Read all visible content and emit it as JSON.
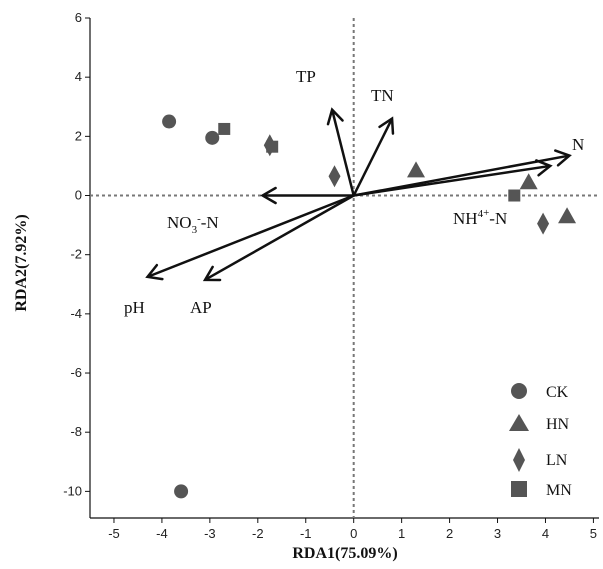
{
  "chart_data": {
    "type": "scatter",
    "xlabel": "RDA1(75.09%)",
    "ylabel": "RDA2(7.92%)",
    "xlim": [
      -5.5,
      5.2
    ],
    "ylim": [
      -10.9,
      6
    ],
    "x_ticks": [
      -5,
      -4,
      -3,
      -2,
      -1,
      0,
      1,
      2,
      3,
      4,
      5
    ],
    "y_ticks": [
      -10,
      -8,
      -6,
      -4,
      -2,
      0,
      2,
      4,
      6
    ],
    "zero_lines": "dotted",
    "grid": false,
    "legend_position": "bottom-right",
    "marker_color": "#555555",
    "line_color": "#111111",
    "series": [
      {
        "name": "CK",
        "marker": "circle",
        "points": [
          [
            -3.85,
            2.5
          ],
          [
            -2.95,
            1.95
          ],
          [
            -3.6,
            -10.0
          ]
        ]
      },
      {
        "name": "HN",
        "marker": "triangle",
        "points": [
          [
            1.3,
            0.85
          ],
          [
            3.65,
            0.45
          ],
          [
            4.45,
            -0.7
          ]
        ]
      },
      {
        "name": "LN",
        "marker": "diamond",
        "points": [
          [
            -1.75,
            1.7
          ],
          [
            -0.4,
            0.65
          ],
          [
            3.95,
            -0.95
          ]
        ]
      },
      {
        "name": "MN",
        "marker": "square",
        "points": [
          [
            -2.7,
            2.25
          ],
          [
            -1.7,
            1.65
          ],
          [
            3.35,
            0.0
          ]
        ]
      }
    ],
    "vectors": [
      {
        "label": "TP",
        "x": -0.45,
        "y": 2.9
      },
      {
        "label": "TN",
        "x": 0.8,
        "y": 2.6
      },
      {
        "label": "N",
        "x": 4.5,
        "y": 1.35
      },
      {
        "label": "NH4+-N",
        "x": 4.1,
        "y": 1.0
      },
      {
        "label": "NO3--N",
        "x": -1.9,
        "y": 0.0
      },
      {
        "label": "pH",
        "x": -4.3,
        "y": -2.75
      },
      {
        "label": "AP",
        "x": -3.1,
        "y": -2.85
      }
    ]
  }
}
